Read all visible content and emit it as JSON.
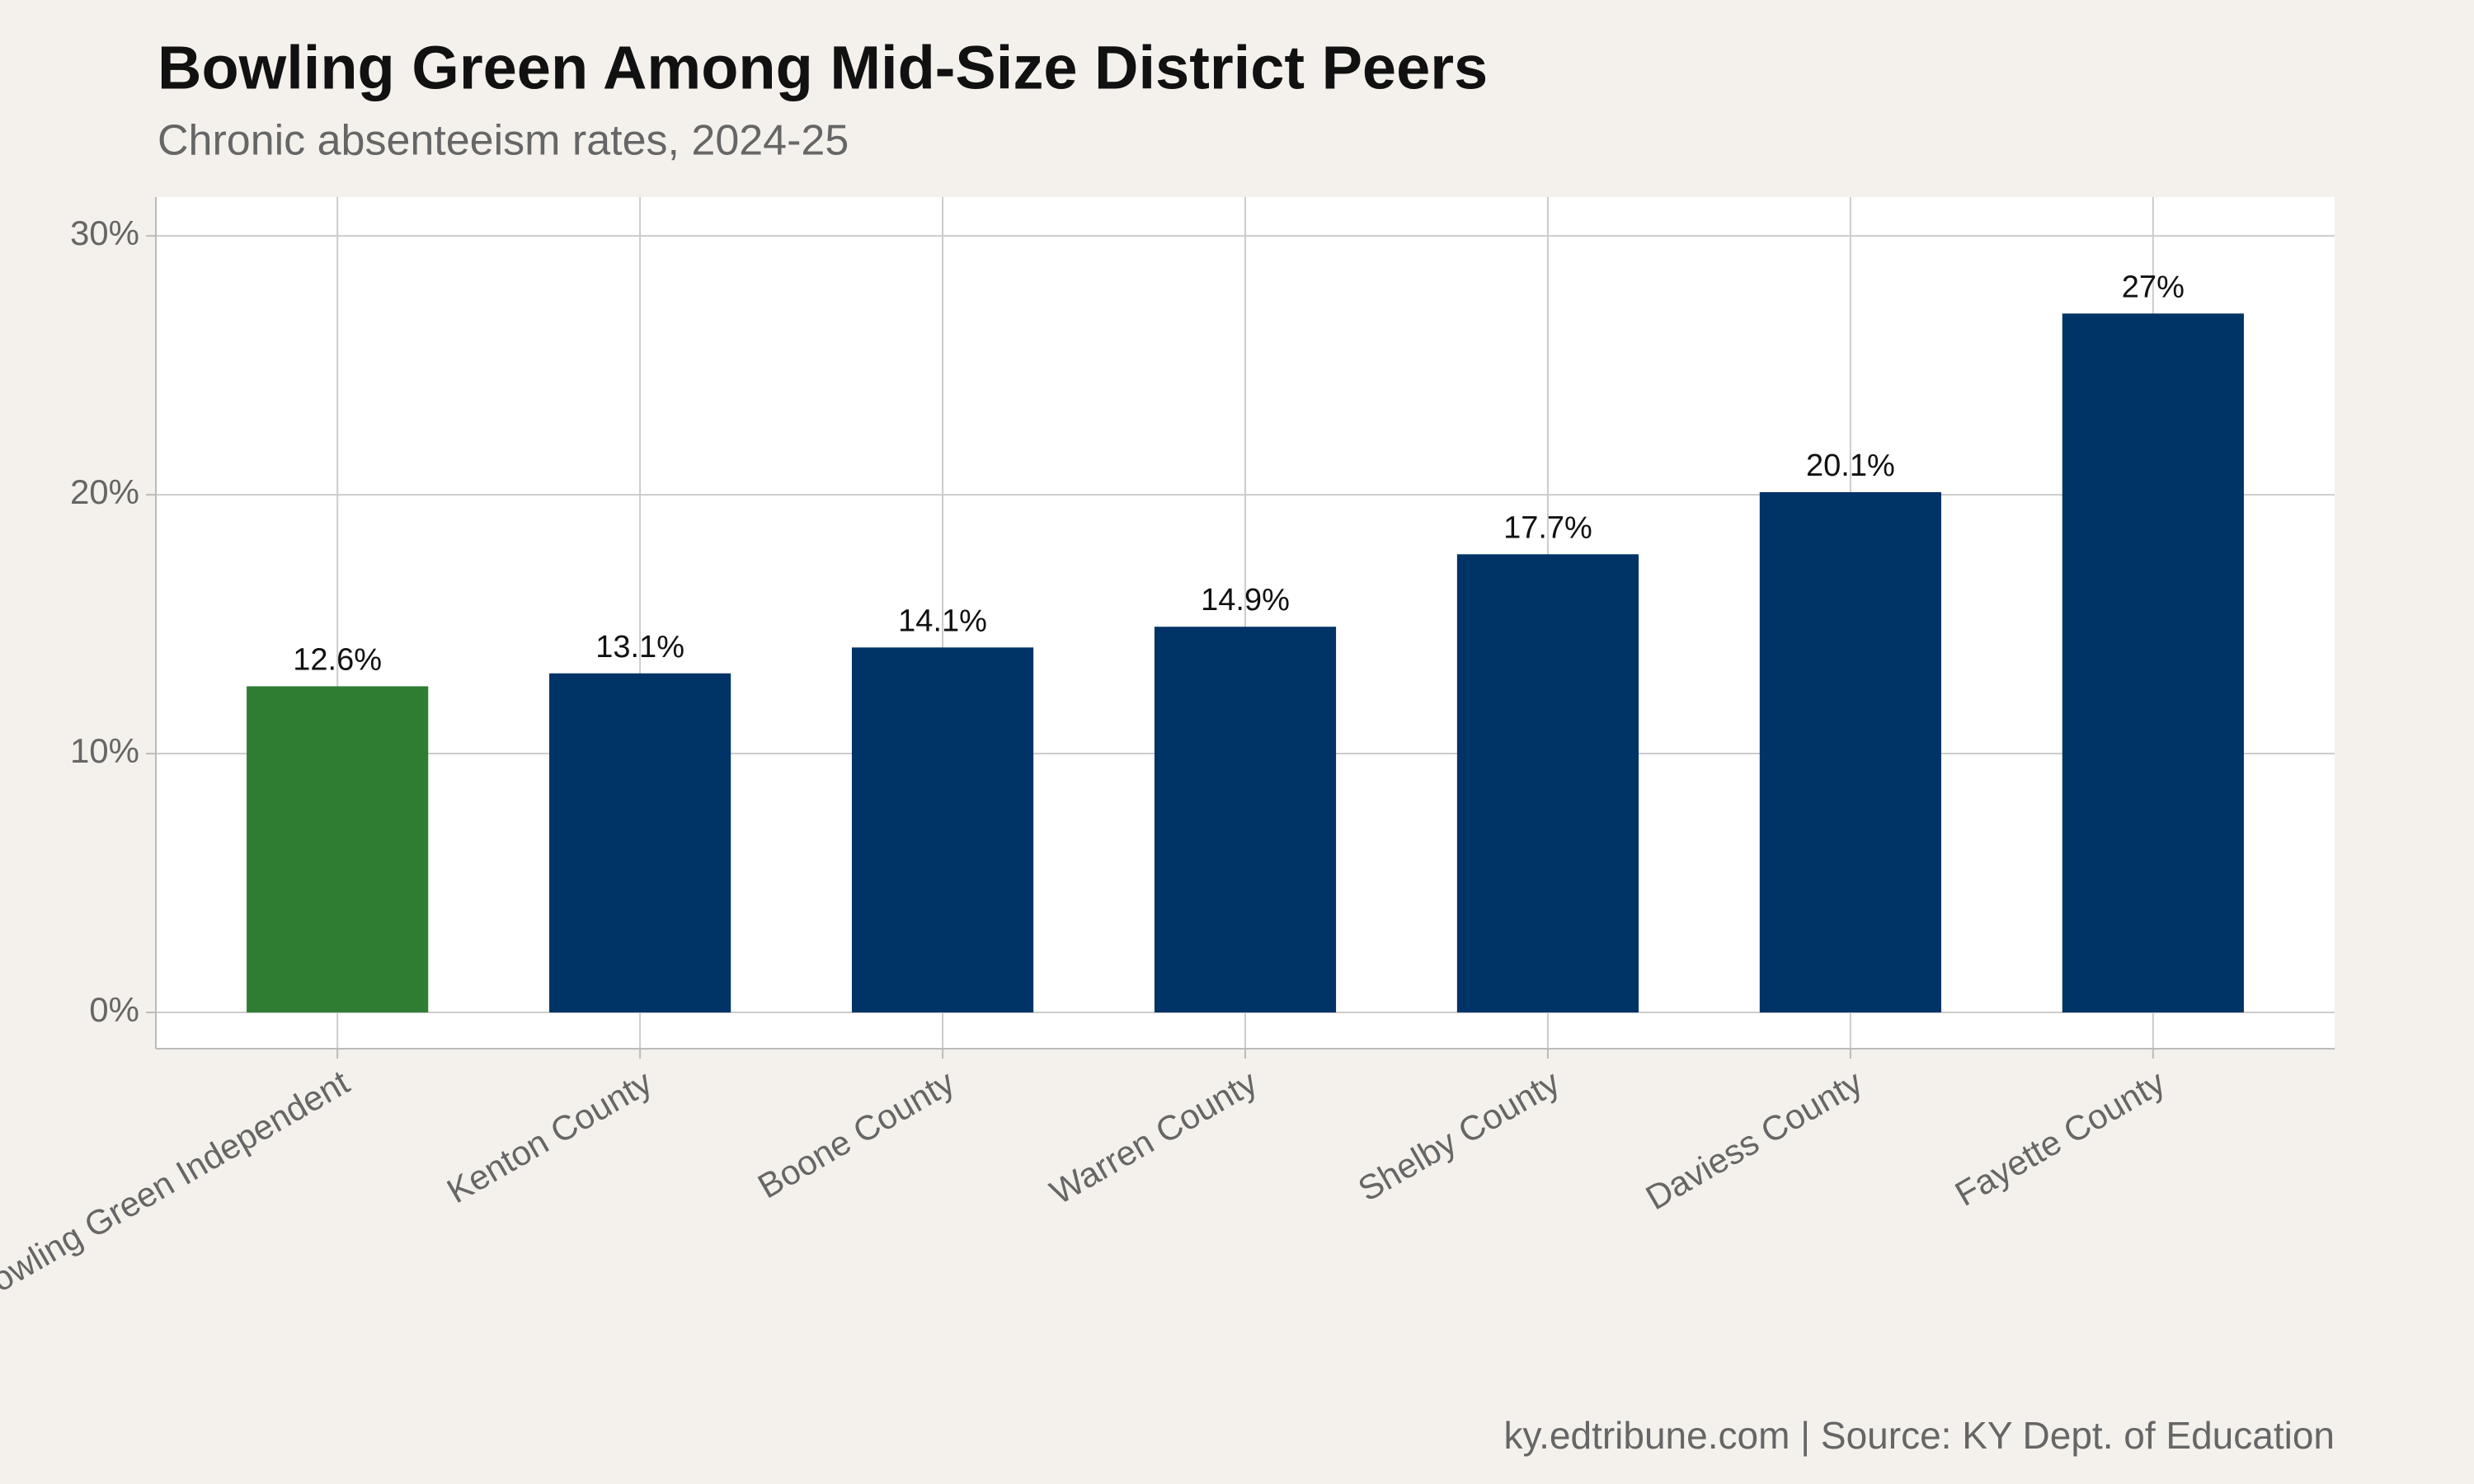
{
  "chart_data": {
    "type": "bar",
    "title": "Bowling Green Among Mid-Size District Peers",
    "subtitle": "Chronic absenteeism rates, 2024-25",
    "caption": "ky.edtribune.com | Source: KY Dept. of Education",
    "categories": [
      "Bowling Green Independent",
      "Kenton County",
      "Boone County",
      "Warren County",
      "Shelby County",
      "Daviess County",
      "Fayette County"
    ],
    "values": [
      12.6,
      13.1,
      14.1,
      14.9,
      17.7,
      20.1,
      27
    ],
    "value_labels": [
      "12.6%",
      "13.1%",
      "14.1%",
      "14.9%",
      "17.7%",
      "20.1%",
      "27%"
    ],
    "colors": [
      "#2e7d32",
      "#003366",
      "#003366",
      "#003366",
      "#003366",
      "#003366",
      "#003366"
    ],
    "ylim": [
      -1.4,
      31.5
    ],
    "yticks": [
      {
        "value": 0,
        "label": "0%"
      },
      {
        "value": 10,
        "label": "10%"
      },
      {
        "value": 20,
        "label": "20%"
      },
      {
        "value": 30,
        "label": "30%"
      }
    ],
    "grid": true
  }
}
